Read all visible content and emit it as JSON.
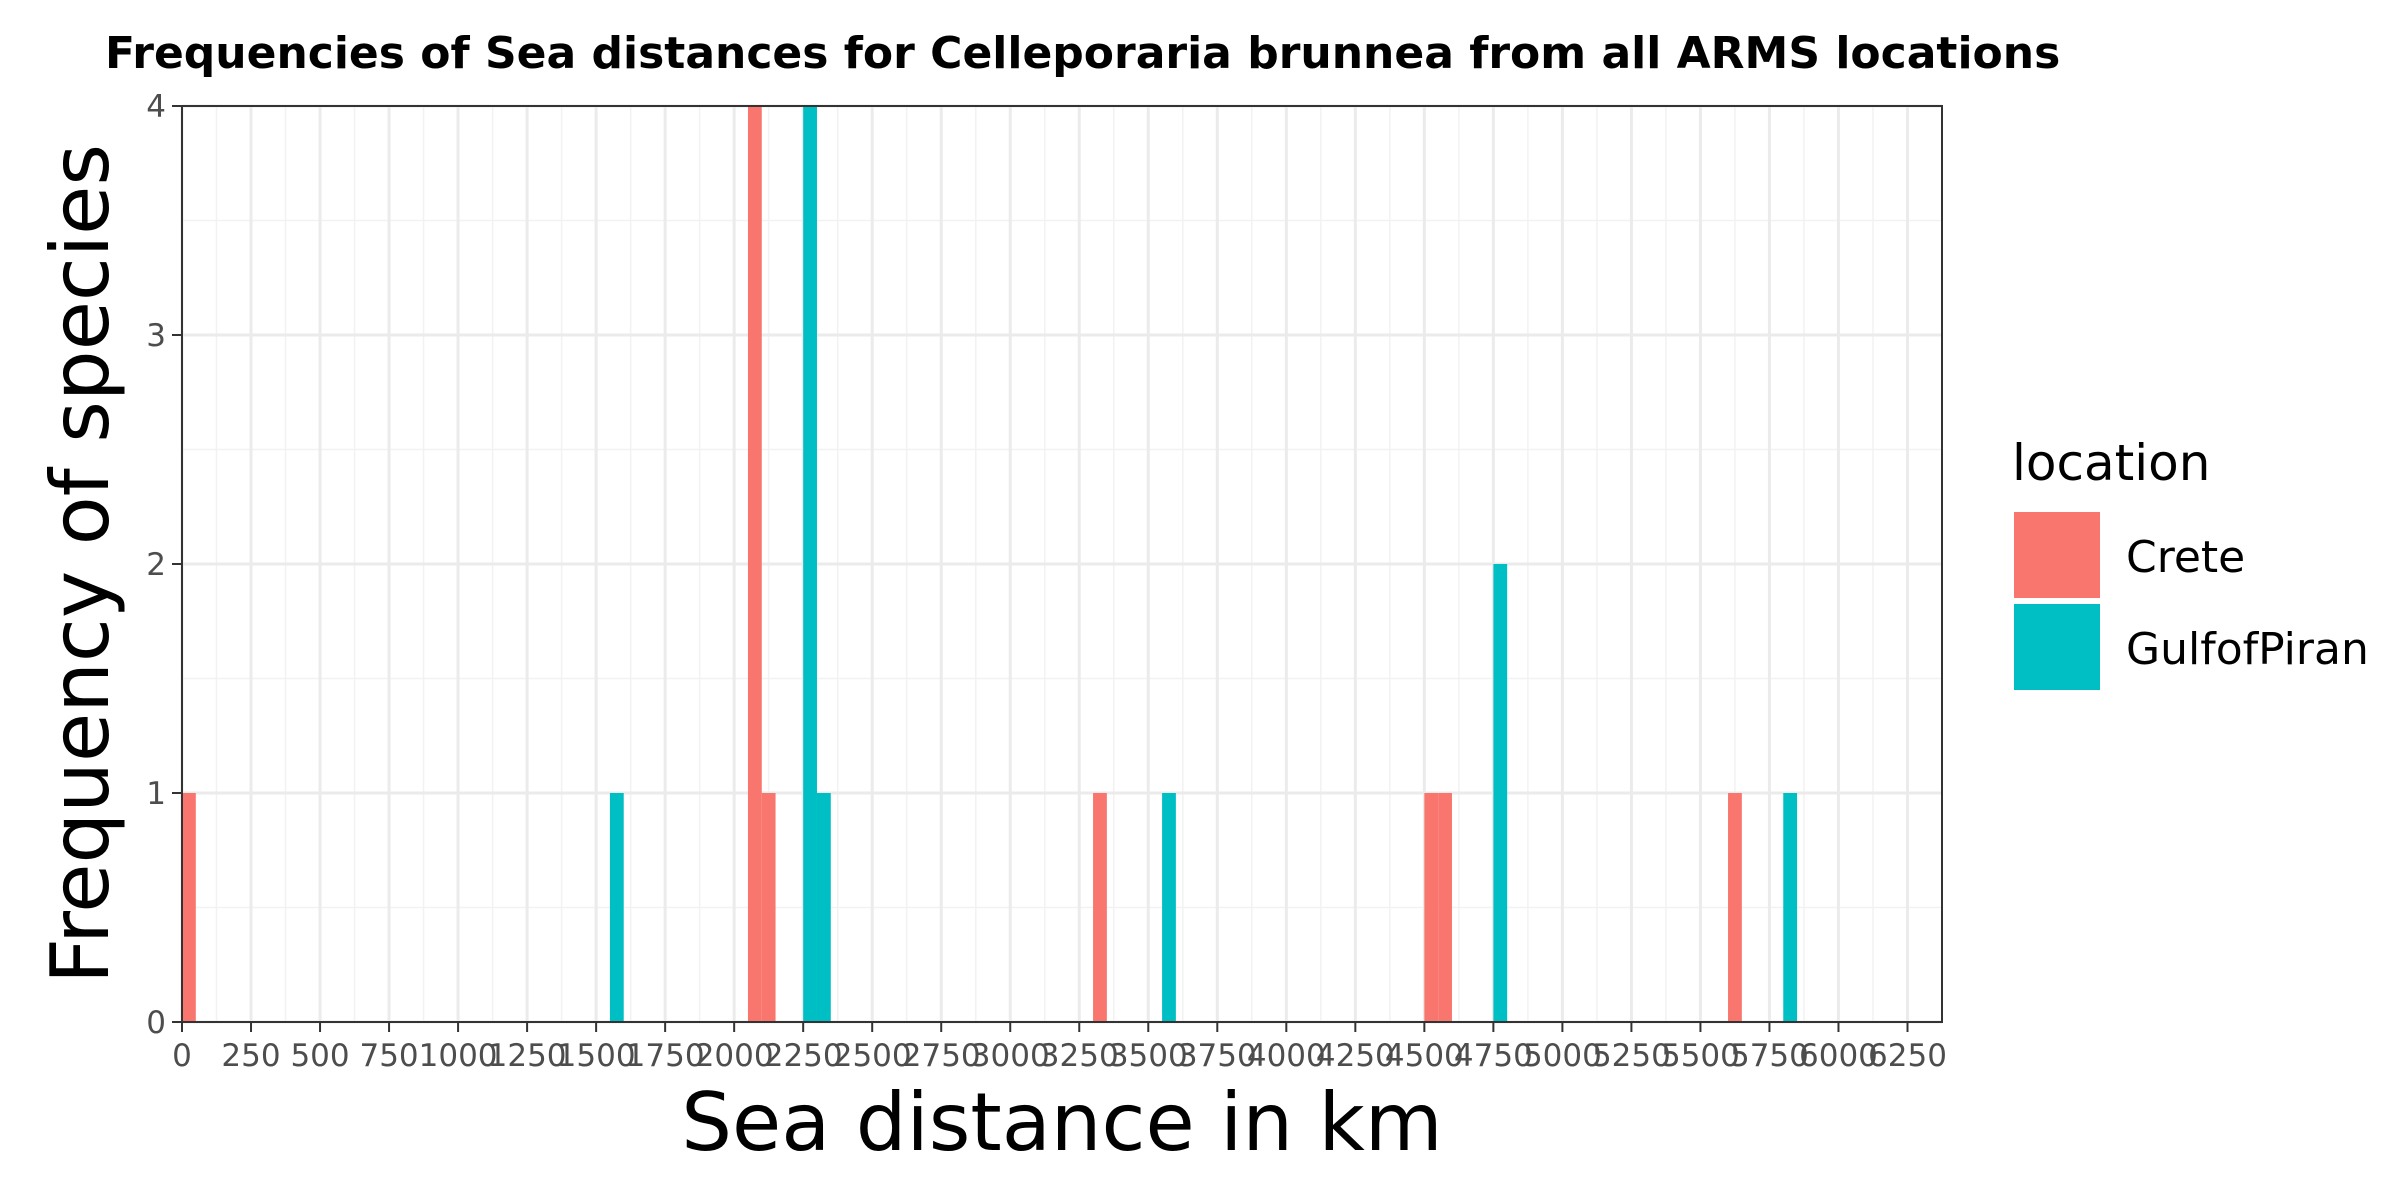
{
  "chart_data": {
    "type": "bar",
    "title": "Frequencies of Sea distances for Celleporaria brunnea from all ARMS locations",
    "xlabel": "Sea distance in km",
    "ylabel": "Frequency of species",
    "xlim": [
      0,
      6375
    ],
    "ylim": [
      0,
      4
    ],
    "bin_width": 50,
    "x_ticks": [
      "0",
      "250",
      "500",
      "750",
      "1000",
      "1250",
      "1500",
      "1750",
      "2000",
      "2250",
      "2500",
      "2750",
      "3000",
      "3250",
      "3500",
      "3750",
      "4000",
      "4250",
      "4500",
      "4750",
      "5000",
      "5250",
      "5500",
      "5750",
      "6000",
      "6250"
    ],
    "y_ticks": [
      "0",
      "1",
      "2",
      "3",
      "4"
    ],
    "grid": true,
    "legend": {
      "title": "location",
      "position": "right"
    },
    "series": [
      {
        "name": "Crete",
        "color": "#F8766D",
        "bins": [
          {
            "x": 25,
            "count": 1
          },
          {
            "x": 2075,
            "count": 4
          },
          {
            "x": 2125,
            "count": 1
          },
          {
            "x": 3325,
            "count": 1
          },
          {
            "x": 4525,
            "count": 1
          },
          {
            "x": 4575,
            "count": 1
          },
          {
            "x": 5625,
            "count": 1
          }
        ]
      },
      {
        "name": "GulfofPiran",
        "color": "#00BFC4",
        "bins": [
          {
            "x": 1575,
            "count": 1
          },
          {
            "x": 2275,
            "count": 4
          },
          {
            "x": 2325,
            "count": 1
          },
          {
            "x": 3575,
            "count": 1
          },
          {
            "x": 4775,
            "count": 2
          },
          {
            "x": 5825,
            "count": 1
          }
        ]
      }
    ]
  }
}
